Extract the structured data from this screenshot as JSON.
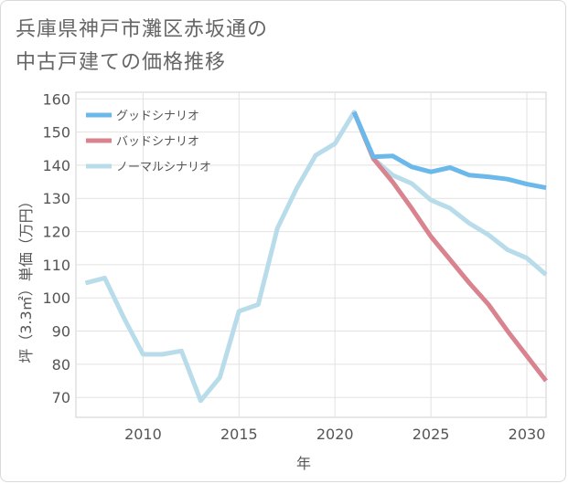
{
  "title_lines": [
    "兵庫県神戸市灘区赤坂通の",
    "中古戸建ての価格推移"
  ],
  "chart_data": {
    "type": "line",
    "xlabel": "年",
    "ylabel": "坪（3.3㎡）単価（万円）",
    "xlim": [
      2006.5,
      2031
    ],
    "ylim": [
      64,
      162
    ],
    "xticks": [
      2010,
      2015,
      2020,
      2025,
      2030
    ],
    "yticks": [
      70,
      80,
      90,
      100,
      110,
      120,
      130,
      140,
      150,
      160
    ],
    "grid": true,
    "legend_position": "top-left",
    "series": [
      {
        "name": "ノーマルシナリオ",
        "color": "#b8dcea",
        "x": [
          2007,
          2008,
          2009,
          2010,
          2011,
          2012,
          2013,
          2014,
          2015,
          2016,
          2017,
          2018,
          2019,
          2020,
          2021,
          2022,
          2023,
          2024,
          2025,
          2026,
          2027,
          2028,
          2029,
          2030,
          2031
        ],
        "values": [
          104.5,
          106,
          94,
          83,
          83,
          84,
          69,
          76,
          96,
          98,
          121,
          133,
          143,
          146.5,
          156,
          142,
          137,
          134.5,
          129.5,
          127,
          122.5,
          119,
          114.5,
          112,
          107
        ]
      },
      {
        "name": "バッドシナリオ",
        "color": "#d9838f",
        "x": [
          2021,
          2022,
          2023,
          2024,
          2025,
          2026,
          2027,
          2028,
          2029,
          2030,
          2031
        ],
        "values": [
          156,
          142,
          135,
          127,
          118.5,
          111.5,
          104.5,
          98,
          90,
          82.5,
          75
        ]
      },
      {
        "name": "グッドシナリオ",
        "color": "#6bb8ea",
        "x": [
          2021,
          2022,
          2023,
          2024,
          2025,
          2026,
          2027,
          2028,
          2029,
          2030,
          2031
        ],
        "values": [
          156,
          142.5,
          142.8,
          139.5,
          138,
          139.3,
          137,
          136.5,
          135.8,
          134.3,
          133.2
        ]
      }
    ],
    "legend": [
      {
        "name": "グッドシナリオ",
        "color": "#6bb8ea"
      },
      {
        "name": "バッドシナリオ",
        "color": "#d9838f"
      },
      {
        "name": "ノーマルシナリオ",
        "color": "#b8dcea"
      }
    ]
  }
}
